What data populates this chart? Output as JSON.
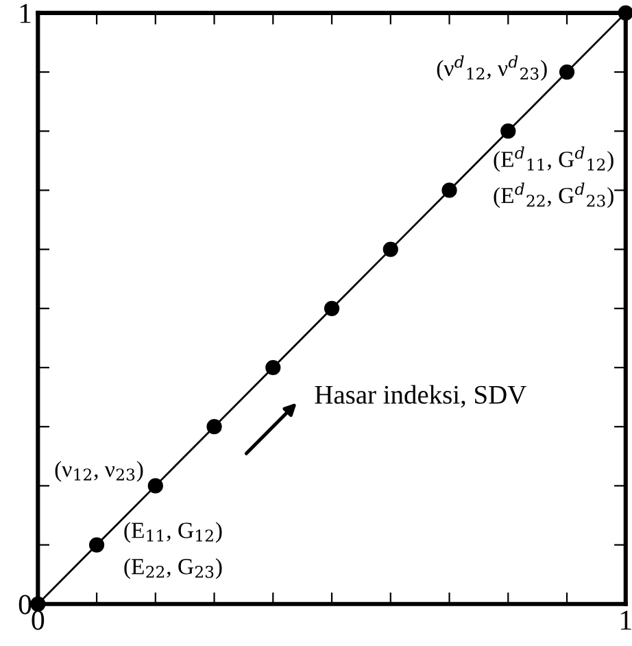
{
  "chart_data": {
    "type": "line",
    "x": [
      0,
      0.1,
      0.2,
      0.3,
      0.4,
      0.5,
      0.6,
      0.7,
      0.8,
      0.9,
      1
    ],
    "series": [
      {
        "color": "#000000",
        "values": [
          0,
          0.1,
          0.2,
          0.3,
          0.4,
          0.5,
          0.6,
          0.7,
          0.8,
          0.9,
          1
        ]
      }
    ],
    "marker": "circle",
    "line_style": "solid",
    "grid": false,
    "xlim": [
      0,
      1
    ],
    "ylim": [
      0,
      1
    ],
    "xticks": [
      0,
      {
        "value": 0.1,
        "label": null
      },
      {
        "value": 0.2,
        "label": null
      },
      {
        "value": 0.3,
        "label": null
      },
      {
        "value": 0.4,
        "label": null
      },
      {
        "value": 0.5,
        "label": null
      },
      {
        "value": 0.6,
        "label": null
      },
      {
        "value": 0.7,
        "label": null
      },
      {
        "value": 0.8,
        "label": null
      },
      {
        "value": 0.9,
        "label": null
      },
      1
    ],
    "yticks": [
      0,
      {
        "value": 0.1,
        "label": null
      },
      {
        "value": 0.2,
        "label": null
      },
      {
        "value": 0.3,
        "label": null
      },
      {
        "value": 0.4,
        "label": null
      },
      {
        "value": 0.5,
        "label": null
      },
      {
        "value": 0.6,
        "label": null
      },
      {
        "value": 0.7,
        "label": null
      },
      {
        "value": 0.8,
        "label": null
      },
      {
        "value": 0.9,
        "label": null
      },
      1
    ],
    "annotations": [
      {
        "text": "(E$_{11}$, G$_{12}$)",
        "x": 0.1,
        "y": 0.1
      },
      {
        "text": "(E$_{22}$, G$_{23}$)",
        "x": 0.1,
        "y": 0.1
      },
      {
        "text": "(ν$_{12}$, ν$_{23}$)",
        "x": 0.2,
        "y": 0.2
      },
      {
        "text": "(E$^{d}$$_{11}$, G$^{d}$$_{12}$)",
        "x": 0.8,
        "y": 0.8
      },
      {
        "text": "(E$^{d}$$_{22}$, G$^{d}$$_{23}$)",
        "x": 0.8,
        "y": 0.8
      },
      {
        "text": "(ν$^{d}$$_{12}$, ν$^{d}$$_{23}$)",
        "x": 0.9,
        "y": 0.9
      },
      "Hasar indeksi, SDV"
    ]
  }
}
